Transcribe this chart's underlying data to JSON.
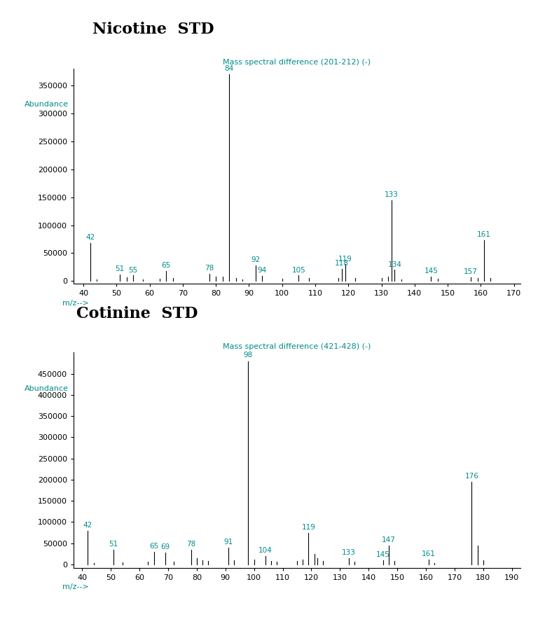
{
  "nicotine": {
    "title": "Nicotine  STD",
    "subtitle": "Mass spectral difference (201-212) (-)",
    "xlabel": "m/z-->",
    "ylabel": "Abundance",
    "xlim": [
      37,
      172
    ],
    "ylim": [
      -5000,
      380000
    ],
    "yticks": [
      0,
      50000,
      100000,
      150000,
      200000,
      250000,
      300000,
      350000
    ],
    "xticks": [
      40,
      50,
      60,
      70,
      80,
      90,
      100,
      110,
      120,
      130,
      140,
      150,
      160,
      170
    ],
    "peaks": [
      {
        "mz": 42,
        "intensity": 68000,
        "label": "42",
        "show_label": true
      },
      {
        "mz": 44,
        "intensity": 3000,
        "label": "",
        "show_label": false
      },
      {
        "mz": 51,
        "intensity": 12000,
        "label": "51",
        "show_label": true
      },
      {
        "mz": 53,
        "intensity": 7000,
        "label": "",
        "show_label": false
      },
      {
        "mz": 55,
        "intensity": 10000,
        "label": "55",
        "show_label": true
      },
      {
        "mz": 58,
        "intensity": 3000,
        "label": "",
        "show_label": false
      },
      {
        "mz": 63,
        "intensity": 4000,
        "label": "",
        "show_label": false
      },
      {
        "mz": 65,
        "intensity": 18000,
        "label": "65",
        "show_label": true
      },
      {
        "mz": 67,
        "intensity": 6000,
        "label": "",
        "show_label": false
      },
      {
        "mz": 78,
        "intensity": 13000,
        "label": "78",
        "show_label": true
      },
      {
        "mz": 80,
        "intensity": 8000,
        "label": "",
        "show_label": false
      },
      {
        "mz": 82,
        "intensity": 8000,
        "label": "",
        "show_label": false
      },
      {
        "mz": 84,
        "intensity": 370000,
        "label": "84",
        "show_label": true
      },
      {
        "mz": 86,
        "intensity": 5000,
        "label": "",
        "show_label": false
      },
      {
        "mz": 88,
        "intensity": 3000,
        "label": "",
        "show_label": false
      },
      {
        "mz": 92,
        "intensity": 28000,
        "label": "92",
        "show_label": true
      },
      {
        "mz": 94,
        "intensity": 9000,
        "label": "94",
        "show_label": true
      },
      {
        "mz": 100,
        "intensity": 4000,
        "label": "",
        "show_label": false
      },
      {
        "mz": 105,
        "intensity": 10000,
        "label": "105",
        "show_label": true
      },
      {
        "mz": 108,
        "intensity": 5000,
        "label": "",
        "show_label": false
      },
      {
        "mz": 117,
        "intensity": 6000,
        "label": "",
        "show_label": false
      },
      {
        "mz": 118,
        "intensity": 22000,
        "label": "118",
        "show_label": true
      },
      {
        "mz": 119,
        "intensity": 30000,
        "label": "119",
        "show_label": true
      },
      {
        "mz": 122,
        "intensity": 5000,
        "label": "",
        "show_label": false
      },
      {
        "mz": 130,
        "intensity": 5000,
        "label": "",
        "show_label": false
      },
      {
        "mz": 132,
        "intensity": 8000,
        "label": "",
        "show_label": false
      },
      {
        "mz": 133,
        "intensity": 145000,
        "label": "133",
        "show_label": true
      },
      {
        "mz": 134,
        "intensity": 20000,
        "label": "134",
        "show_label": true
      },
      {
        "mz": 136,
        "intensity": 3000,
        "label": "",
        "show_label": false
      },
      {
        "mz": 145,
        "intensity": 8000,
        "label": "145",
        "show_label": true
      },
      {
        "mz": 147,
        "intensity": 4000,
        "label": "",
        "show_label": false
      },
      {
        "mz": 157,
        "intensity": 7000,
        "label": "157",
        "show_label": true
      },
      {
        "mz": 159,
        "intensity": 5000,
        "label": "",
        "show_label": false
      },
      {
        "mz": 161,
        "intensity": 73000,
        "label": "161",
        "show_label": true
      },
      {
        "mz": 163,
        "intensity": 5000,
        "label": "",
        "show_label": false
      }
    ]
  },
  "cotinine": {
    "title": "Cotinine  STD",
    "subtitle": "Mass spectral difference (421-428) (-)",
    "xlabel": "m/z-->",
    "ylabel": "Abundance",
    "xlim": [
      37,
      193
    ],
    "ylim": [
      -8000,
      500000
    ],
    "yticks": [
      0,
      50000,
      100000,
      150000,
      200000,
      250000,
      300000,
      350000,
      400000,
      450000
    ],
    "xticks": [
      40,
      50,
      60,
      70,
      80,
      90,
      100,
      110,
      120,
      130,
      140,
      150,
      160,
      170,
      180,
      190
    ],
    "peaks": [
      {
        "mz": 42,
        "intensity": 80000,
        "label": "42",
        "show_label": true
      },
      {
        "mz": 44,
        "intensity": 4000,
        "label": "",
        "show_label": false
      },
      {
        "mz": 51,
        "intensity": 35000,
        "label": "51",
        "show_label": true
      },
      {
        "mz": 54,
        "intensity": 5000,
        "label": "",
        "show_label": false
      },
      {
        "mz": 63,
        "intensity": 6000,
        "label": "",
        "show_label": false
      },
      {
        "mz": 65,
        "intensity": 30000,
        "label": "65",
        "show_label": true
      },
      {
        "mz": 69,
        "intensity": 28000,
        "label": "69",
        "show_label": true
      },
      {
        "mz": 72,
        "intensity": 7000,
        "label": "",
        "show_label": false
      },
      {
        "mz": 78,
        "intensity": 35000,
        "label": "78",
        "show_label": true
      },
      {
        "mz": 80,
        "intensity": 15000,
        "label": "",
        "show_label": false
      },
      {
        "mz": 82,
        "intensity": 10000,
        "label": "",
        "show_label": false
      },
      {
        "mz": 84,
        "intensity": 8000,
        "label": "",
        "show_label": false
      },
      {
        "mz": 91,
        "intensity": 40000,
        "label": "91",
        "show_label": true
      },
      {
        "mz": 93,
        "intensity": 10000,
        "label": "",
        "show_label": false
      },
      {
        "mz": 98,
        "intensity": 480000,
        "label": "98",
        "show_label": true
      },
      {
        "mz": 100,
        "intensity": 12000,
        "label": "",
        "show_label": false
      },
      {
        "mz": 104,
        "intensity": 20000,
        "label": "104",
        "show_label": true
      },
      {
        "mz": 106,
        "intensity": 8000,
        "label": "",
        "show_label": false
      },
      {
        "mz": 108,
        "intensity": 6000,
        "label": "",
        "show_label": false
      },
      {
        "mz": 115,
        "intensity": 8000,
        "label": "",
        "show_label": false
      },
      {
        "mz": 117,
        "intensity": 12000,
        "label": "",
        "show_label": false
      },
      {
        "mz": 119,
        "intensity": 75000,
        "label": "119",
        "show_label": true
      },
      {
        "mz": 121,
        "intensity": 25000,
        "label": "",
        "show_label": false
      },
      {
        "mz": 122,
        "intensity": 15000,
        "label": "",
        "show_label": false
      },
      {
        "mz": 124,
        "intensity": 8000,
        "label": "",
        "show_label": false
      },
      {
        "mz": 133,
        "intensity": 15000,
        "label": "133",
        "show_label": true
      },
      {
        "mz": 135,
        "intensity": 7000,
        "label": "",
        "show_label": false
      },
      {
        "mz": 145,
        "intensity": 10000,
        "label": "145",
        "show_label": true
      },
      {
        "mz": 147,
        "intensity": 45000,
        "label": "147",
        "show_label": true
      },
      {
        "mz": 149,
        "intensity": 8000,
        "label": "",
        "show_label": false
      },
      {
        "mz": 161,
        "intensity": 12000,
        "label": "161",
        "show_label": true
      },
      {
        "mz": 163,
        "intensity": 4000,
        "label": "",
        "show_label": false
      },
      {
        "mz": 176,
        "intensity": 195000,
        "label": "176",
        "show_label": true
      },
      {
        "mz": 178,
        "intensity": 45000,
        "label": "",
        "show_label": false
      },
      {
        "mz": 180,
        "intensity": 10000,
        "label": "",
        "show_label": false
      }
    ]
  },
  "text_color": "#008B8B",
  "bar_color": "black",
  "background_color": "white",
  "title_fontsize": 16,
  "label_fontsize": 7.5,
  "axis_label_fontsize": 8,
  "tick_fontsize": 8,
  "subtitle_fontsize": 8
}
